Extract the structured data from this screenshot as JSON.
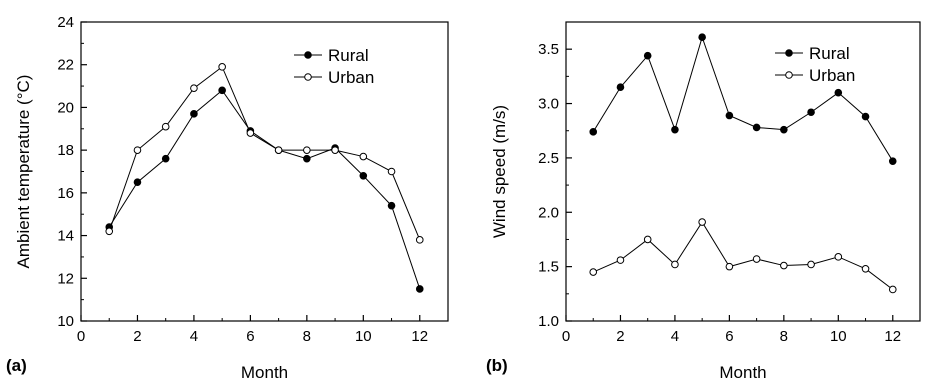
{
  "chart_data": [
    {
      "type": "line",
      "panel_label": "(a)",
      "xlabel": "Month",
      "ylabel": "Ambient temperature (°C)",
      "xlim": [
        0,
        13
      ],
      "ylim": [
        10,
        24
      ],
      "xticks": [
        0,
        2,
        4,
        6,
        8,
        10,
        12
      ],
      "xtick_labels": [
        "0",
        "2",
        "4",
        "6",
        "8",
        "10",
        "12"
      ],
      "yticks": [
        10,
        12,
        14,
        16,
        18,
        20,
        22,
        24
      ],
      "ytick_labels": [
        "10",
        "12",
        "14",
        "16",
        "18",
        "20",
        "22",
        "24"
      ],
      "grid": false,
      "legend_position": "top-right",
      "x": [
        1,
        2,
        3,
        4,
        5,
        6,
        7,
        8,
        9,
        10,
        11,
        12
      ],
      "series": [
        {
          "name": "Rural",
          "marker": "filled-circle",
          "values": [
            14.4,
            16.5,
            17.6,
            19.7,
            20.8,
            18.9,
            18.0,
            17.6,
            18.1,
            16.8,
            15.4,
            11.5
          ]
        },
        {
          "name": "Urban",
          "marker": "open-circle",
          "values": [
            14.2,
            18.0,
            19.1,
            20.9,
            21.9,
            18.8,
            18.0,
            18.0,
            18.0,
            17.7,
            17.0,
            13.8
          ]
        }
      ]
    },
    {
      "type": "line",
      "panel_label": "(b)",
      "xlabel": "Month",
      "ylabel": "Wind speed (m/s)",
      "xlim": [
        0,
        13
      ],
      "ylim": [
        1.0,
        3.75
      ],
      "xticks": [
        0,
        2,
        4,
        6,
        8,
        10,
        12
      ],
      "xtick_labels": [
        "0",
        "2",
        "4",
        "6",
        "8",
        "10",
        "12"
      ],
      "yticks": [
        1.0,
        1.5,
        2.0,
        2.5,
        3.0,
        3.5
      ],
      "ytick_labels": [
        "1.0",
        "1.5",
        "2.0",
        "2.5",
        "3.0",
        "3.5"
      ],
      "grid": false,
      "legend_position": "top-right",
      "x": [
        1,
        2,
        3,
        4,
        5,
        6,
        7,
        8,
        9,
        10,
        11,
        12
      ],
      "series": [
        {
          "name": "Rural",
          "marker": "filled-circle",
          "values": [
            2.74,
            3.15,
            3.44,
            2.76,
            3.61,
            2.89,
            2.78,
            2.76,
            2.92,
            3.1,
            2.88,
            2.47
          ]
        },
        {
          "name": "Urban",
          "marker": "open-circle",
          "values": [
            1.45,
            1.56,
            1.75,
            1.52,
            1.91,
            1.5,
            1.57,
            1.51,
            1.52,
            1.59,
            1.48,
            1.29
          ]
        }
      ]
    }
  ]
}
